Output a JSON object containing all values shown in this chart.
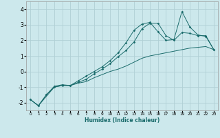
{
  "xlabel": "Humidex (Indice chaleur)",
  "ylabel": "",
  "bg_color": "#cce8ec",
  "grid_color": "#b0d0d5",
  "line_color": "#1a6b6b",
  "xlim": [
    -0.5,
    23.5
  ],
  "ylim": [
    -2.5,
    4.5
  ],
  "xticks": [
    0,
    1,
    2,
    3,
    4,
    5,
    6,
    7,
    8,
    9,
    10,
    11,
    12,
    13,
    14,
    15,
    16,
    17,
    18,
    19,
    20,
    21,
    22,
    23
  ],
  "yticks": [
    -2,
    -1,
    0,
    1,
    2,
    3,
    4
  ],
  "line1_x": [
    0,
    1,
    2,
    3,
    4,
    5,
    6,
    7,
    8,
    9,
    10,
    11,
    12,
    13,
    14,
    15,
    16,
    17,
    18,
    19,
    20,
    21,
    22,
    23
  ],
  "line1_y": [
    -1.8,
    -2.2,
    -1.6,
    -1.0,
    -0.9,
    -0.9,
    -0.75,
    -0.65,
    -0.4,
    -0.2,
    0.0,
    0.15,
    0.35,
    0.6,
    0.85,
    1.0,
    1.1,
    1.2,
    1.3,
    1.4,
    1.5,
    1.55,
    1.6,
    1.4
  ],
  "line2_x": [
    0,
    1,
    2,
    3,
    4,
    5,
    6,
    7,
    8,
    9,
    10,
    11,
    12,
    13,
    14,
    15,
    16,
    17,
    18,
    19,
    20,
    21,
    22,
    23
  ],
  "line2_y": [
    -1.8,
    -2.2,
    -1.5,
    -1.0,
    -0.9,
    -0.9,
    -0.7,
    -0.5,
    -0.15,
    0.15,
    0.5,
    0.95,
    1.35,
    1.9,
    2.75,
    3.1,
    3.1,
    2.3,
    2.0,
    2.5,
    2.45,
    2.3,
    2.3,
    1.4
  ],
  "line3_x": [
    0,
    1,
    2,
    3,
    4,
    5,
    6,
    7,
    8,
    9,
    10,
    11,
    12,
    13,
    14,
    15,
    16,
    17,
    18,
    19,
    20,
    21,
    22,
    23
  ],
  "line3_y": [
    -1.8,
    -2.2,
    -1.5,
    -0.95,
    -0.85,
    -0.9,
    -0.6,
    -0.3,
    0.0,
    0.3,
    0.7,
    1.2,
    1.85,
    2.65,
    3.05,
    3.15,
    2.55,
    2.0,
    2.05,
    3.85,
    2.85,
    2.35,
    2.25,
    1.4
  ]
}
